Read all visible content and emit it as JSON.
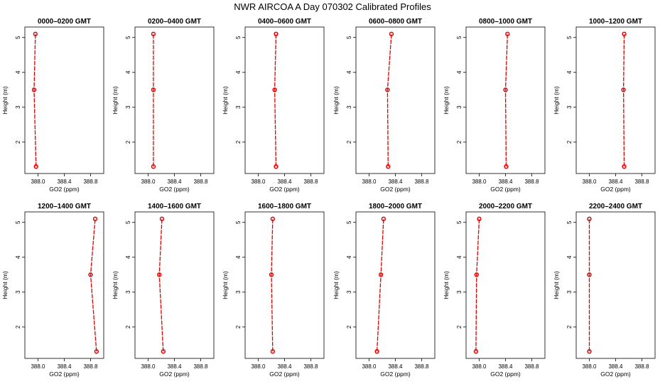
{
  "title": "NWR AIRCOA A  Day 070302  Calibrated Profiles",
  "colors": {
    "series": "#dd0000",
    "axis": "#000000"
  },
  "chart_data": {
    "type": "line",
    "layout": "grid 2 rows x 6 columns",
    "shared": {
      "xlabel": "GO2 (ppm)",
      "ylabel": "Height (m)",
      "xlim": [
        387.8,
        389.0
      ],
      "ylim": [
        1.1,
        5.3
      ],
      "xticks": [
        388.0,
        388.4,
        388.8
      ],
      "xtick_labels": [
        "388.0",
        "388.4",
        "388.8"
      ],
      "yticks": [
        2,
        3,
        4,
        5
      ],
      "ytick_labels": [
        "2",
        "3",
        "4",
        "5"
      ],
      "grid": false,
      "markers": "open circle / open square",
      "heights": [
        1.3,
        3.5,
        5.1
      ]
    },
    "panels": [
      {
        "title": "0000–0200 GMT",
        "x": [
          387.97,
          387.94,
          387.96
        ]
      },
      {
        "title": "0200–0400 GMT",
        "x": [
          388.08,
          388.08,
          388.08
        ]
      },
      {
        "title": "0400–0600 GMT",
        "x": [
          388.27,
          388.25,
          388.27
        ]
      },
      {
        "title": "0600–0800 GMT",
        "x": [
          388.29,
          388.28,
          388.34
        ]
      },
      {
        "title": "0800–1000 GMT",
        "x": [
          388.41,
          388.4,
          388.43
        ]
      },
      {
        "title": "1000–1200 GMT",
        "x": [
          388.53,
          388.52,
          388.53
        ]
      },
      {
        "title": "1200–1400 GMT",
        "x": [
          388.89,
          388.8,
          388.87
        ]
      },
      {
        "title": "1400–1600 GMT",
        "x": [
          388.23,
          388.17,
          388.21
        ]
      },
      {
        "title": "1600–1800 GMT",
        "x": [
          388.22,
          388.2,
          388.22
        ]
      },
      {
        "title": "1800–2000 GMT",
        "x": [
          388.12,
          388.18,
          388.22
        ]
      },
      {
        "title": "2000–2200 GMT",
        "x": [
          387.95,
          387.96,
          388.0
        ]
      },
      {
        "title": "2200–2400 GMT",
        "x": [
          388.0,
          388.0,
          388.0
        ]
      }
    ]
  }
}
